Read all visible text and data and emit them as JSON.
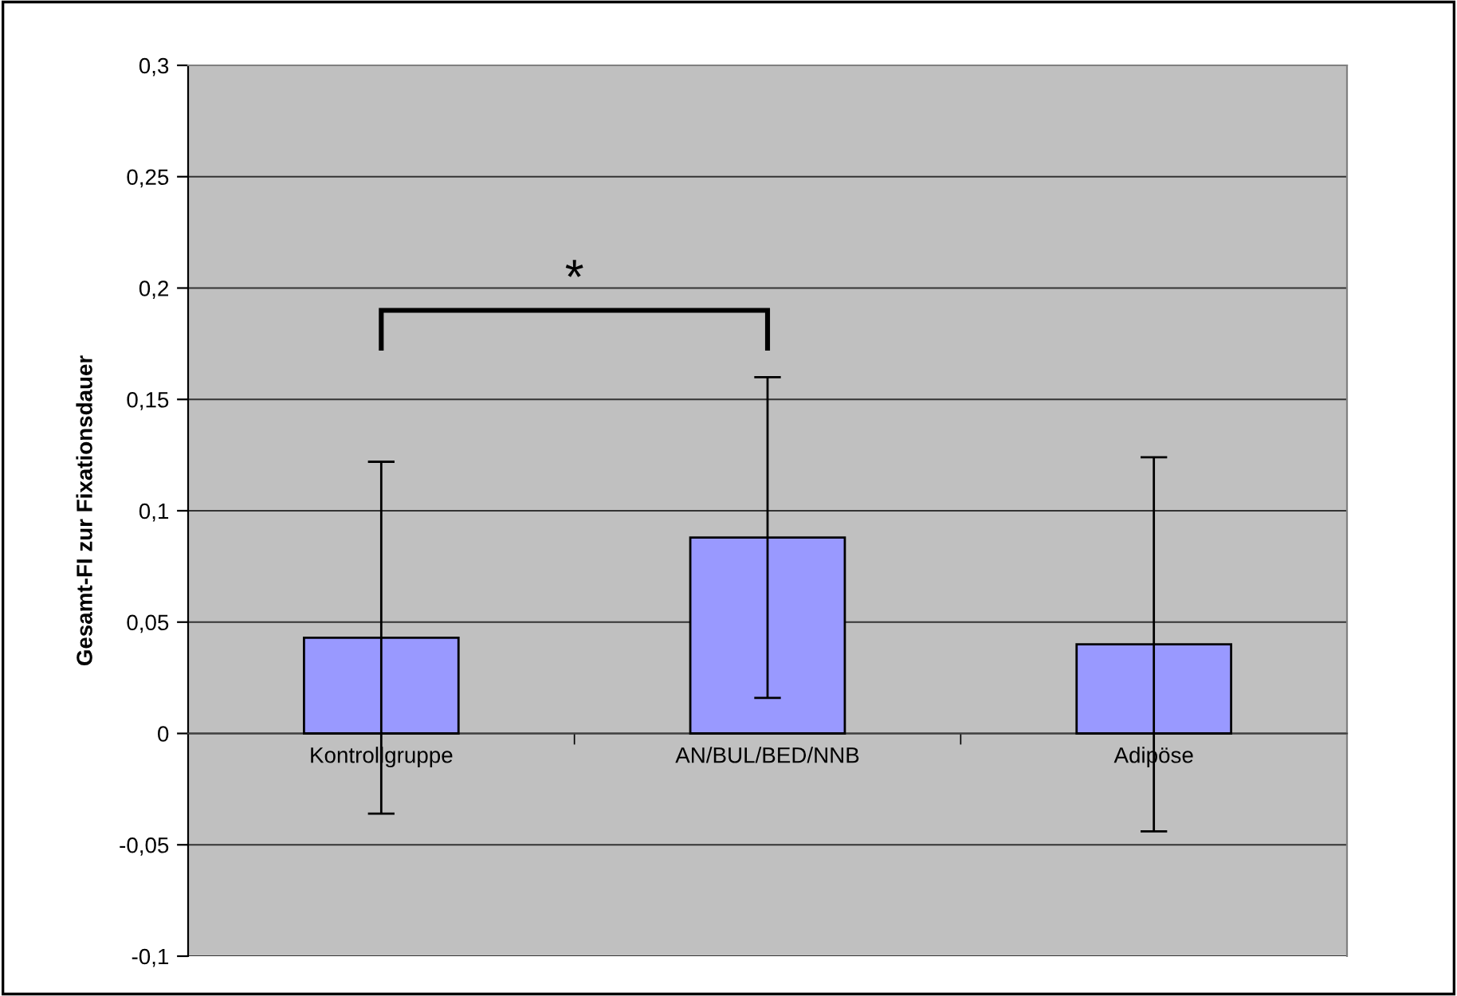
{
  "chart_data": {
    "type": "bar",
    "ylabel": "Gesamt-FI zur Fixationsdauer",
    "categories": [
      "Kontrollgruppe",
      "AN/BUL/BED/NNB",
      "Adipöse"
    ],
    "values": [
      0.043,
      0.088,
      0.04
    ],
    "errors": [
      0.079,
      0.072,
      0.084
    ],
    "color": "#9999ff",
    "ylim": [
      -0.1,
      0.3
    ],
    "yticks": [
      {
        "value": -0.1,
        "label": "-0,1"
      },
      {
        "value": -0.05,
        "label": "-0,05"
      },
      {
        "value": 0,
        "label": "0"
      },
      {
        "value": 0.05,
        "label": "0,05"
      },
      {
        "value": 0.1,
        "label": "0,1"
      },
      {
        "value": 0.15,
        "label": "0,15"
      },
      {
        "value": 0.2,
        "label": "0,2"
      },
      {
        "value": 0.25,
        "label": "0,25"
      },
      {
        "value": 0.3,
        "label": "0,3"
      }
    ],
    "grid": "y",
    "legend": false,
    "annotations": [
      "*"
    ]
  }
}
